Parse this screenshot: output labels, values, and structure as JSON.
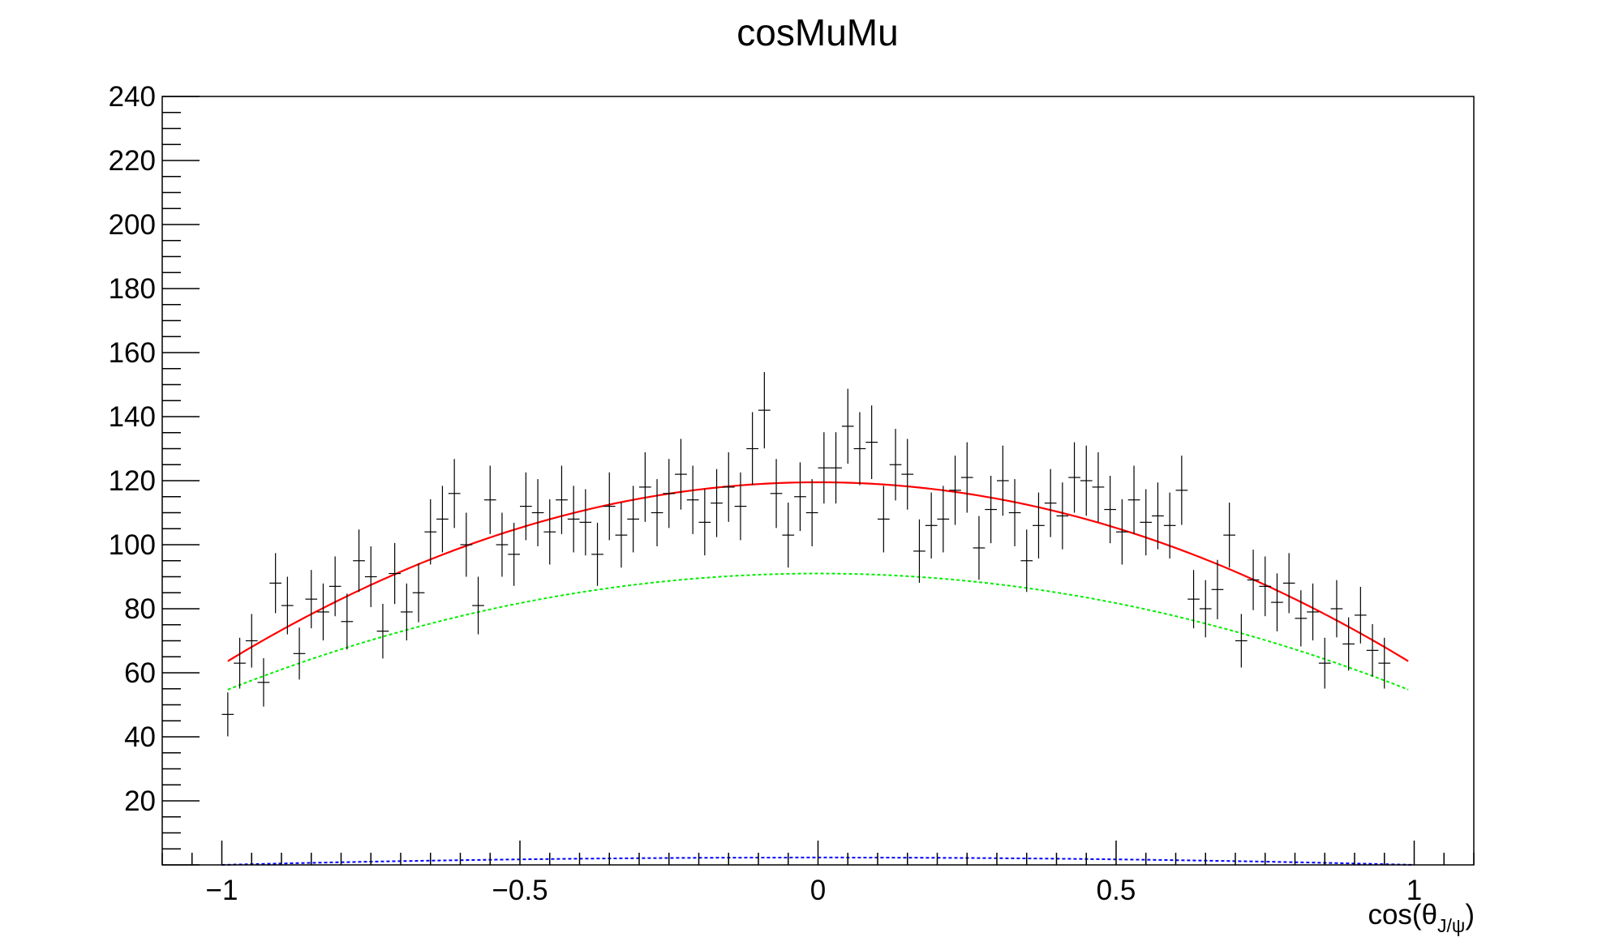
{
  "chart_data": {
    "type": "scatter",
    "title": "cosMuMu",
    "xlabel": {
      "main": "cos(θ",
      "subscript": "J/ψ",
      "close": ")"
    },
    "ylabel": "",
    "xlim": [
      -1.1,
      1.1
    ],
    "ylim": [
      0,
      240
    ],
    "x_ticks": [
      -1,
      -0.5,
      0,
      0.5,
      1
    ],
    "x_tick_labels": [
      "−1",
      "−0.5",
      "0",
      "0.5",
      "1"
    ],
    "y_ticks": [
      20,
      40,
      60,
      80,
      100,
      120,
      140,
      160,
      180,
      200,
      220,
      240
    ],
    "y_tick_labels": [
      "20",
      "40",
      "60",
      "80",
      "100",
      "120",
      "140",
      "160",
      "180",
      "200",
      "220",
      "240"
    ],
    "grid": false,
    "legend": "none",
    "colors": {
      "data": "#000000",
      "total_fit": "#ff0000",
      "component_1": "#00ee00",
      "component_2": "#0000ff",
      "frame": "#000000"
    },
    "data_points": {
      "x_start": -0.99,
      "bin_width": 0.02,
      "values": [
        47,
        63,
        70,
        57,
        88,
        81,
        66,
        83,
        79,
        87,
        76,
        95,
        90,
        73,
        91,
        79,
        85,
        104,
        108,
        116,
        100,
        81,
        114,
        100,
        97,
        112,
        110,
        104,
        114,
        108,
        107,
        97,
        112,
        103,
        108,
        118,
        110,
        116,
        122,
        114,
        107,
        113,
        118,
        112,
        130,
        142,
        116,
        103,
        115,
        110,
        124,
        124,
        137,
        130,
        132,
        108,
        125,
        122,
        98,
        106,
        108,
        117,
        121,
        99,
        111,
        120,
        110,
        95,
        106,
        113,
        109,
        121,
        120,
        118,
        111,
        104,
        114,
        107,
        109,
        106,
        117,
        83,
        80,
        86,
        103,
        70,
        89,
        87,
        82,
        88,
        77,
        79,
        63,
        80,
        69,
        78,
        67,
        63
      ]
    },
    "series": [
      {
        "kind": "curve",
        "color_key": "total_fit",
        "style": "solid",
        "form": "a0 + a2*x^2",
        "a0": 119.5,
        "a2": -57,
        "x_range": [
          -0.99,
          0.99
        ]
      },
      {
        "kind": "curve",
        "color_key": "component_1",
        "style": "dashed",
        "form": "a0 + a2*x^2",
        "a0": 91,
        "a2": -37,
        "x_range": [
          -0.99,
          0.99
        ]
      },
      {
        "kind": "curve",
        "color_key": "component_2",
        "style": "dashed",
        "form": "a0 + a2*x^2",
        "a0": 2.3,
        "a2": -2.3,
        "x_range": [
          -1,
          1
        ]
      }
    ]
  }
}
